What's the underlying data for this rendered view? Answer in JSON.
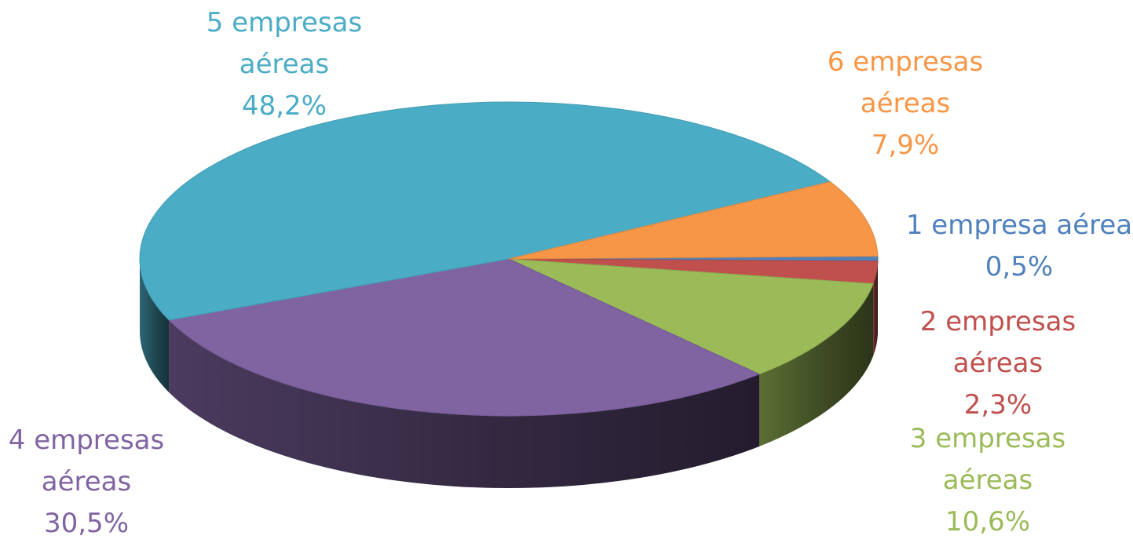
{
  "chart_data": {
    "type": "pie",
    "title": "",
    "style": "3d-exploded-none",
    "start_angle_note": "clockwise from the right, beginning with the smallest slice",
    "slices": [
      {
        "label_lines": [
          "1 empresa aérea",
          "0,5%"
        ],
        "value": 0.5,
        "color": "#4F81BD"
      },
      {
        "label_lines": [
          "2 empresas",
          "aéreas",
          "2,3%"
        ],
        "value": 2.3,
        "color": "#C0504D"
      },
      {
        "label_lines": [
          "3 empresas",
          "aéreas",
          "10,6%"
        ],
        "value": 10.6,
        "color": "#9BBB59"
      },
      {
        "label_lines": [
          "4 empresas",
          "aéreas",
          "30,5%"
        ],
        "value": 30.5,
        "color": "#8064A2"
      },
      {
        "label_lines": [
          "5 empresas",
          "aéreas",
          "48,2%"
        ],
        "value": 48.2,
        "color": "#4BACC6"
      },
      {
        "label_lines": [
          "6 empresas",
          "aéreas",
          "7,9%"
        ],
        "value": 7.9,
        "color": "#F79646"
      }
    ]
  }
}
